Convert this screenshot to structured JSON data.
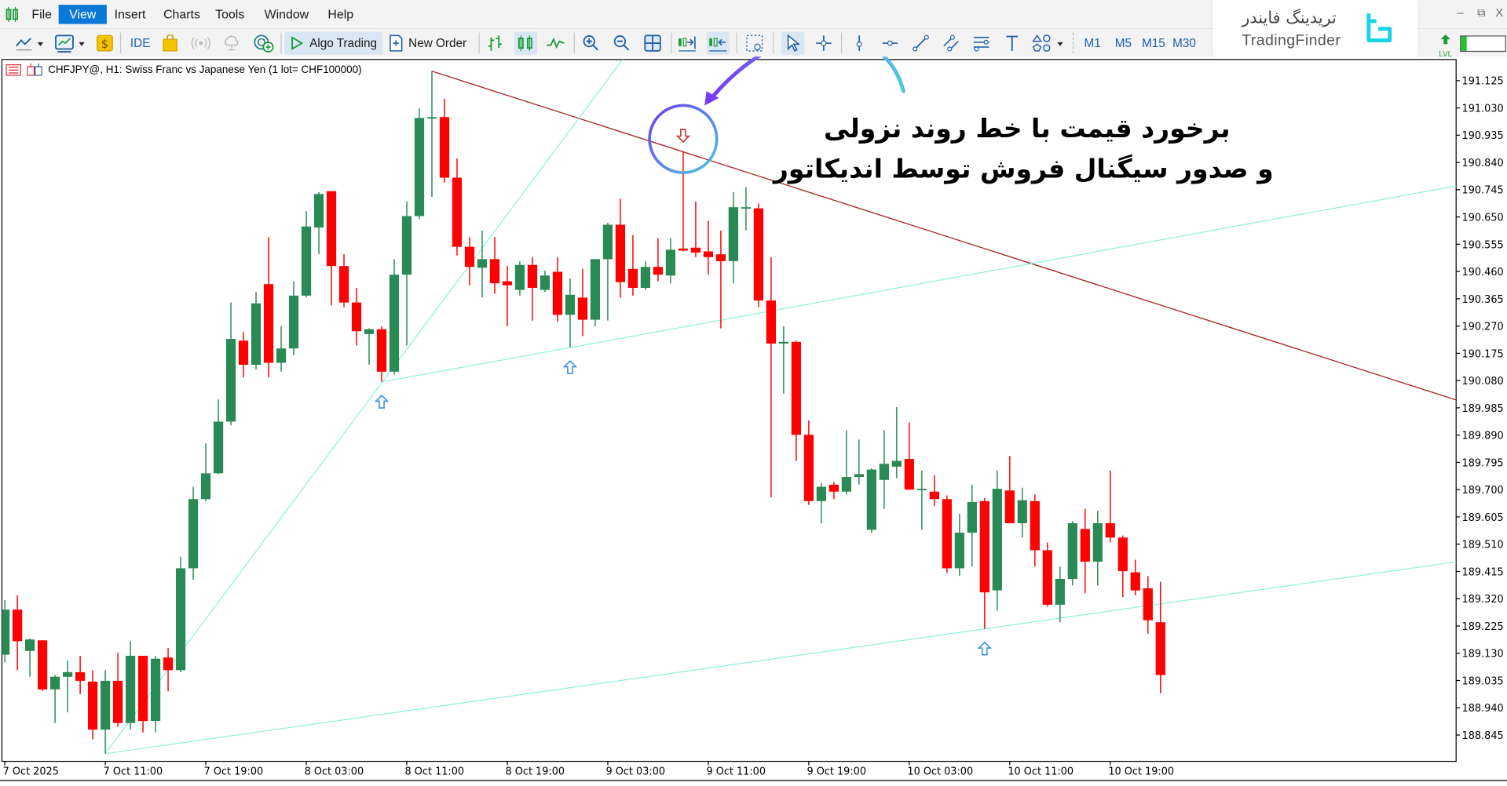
{
  "menu": {
    "items": [
      {
        "label": "File"
      },
      {
        "label": "View",
        "active": true
      },
      {
        "label": "Insert"
      },
      {
        "label": "Charts"
      },
      {
        "label": "Tools"
      },
      {
        "label": "Window"
      },
      {
        "label": "Help"
      }
    ]
  },
  "window_controls": {
    "minimize": "–",
    "restore": "⧉",
    "close": "X"
  },
  "toolbar": {
    "ide_label": "IDE",
    "algo_trading_label": "Algo Trading",
    "new_order_label": "New Order",
    "timeframes": [
      "M1",
      "M5",
      "M15",
      "M30"
    ],
    "lvl_label": "LVL",
    "level_fill_percent": 12,
    "active_tools": [
      "candlesticks",
      "autoscroll",
      "cursor"
    ]
  },
  "watermark": {
    "brand_fa": "تریدینگ فایندر",
    "brand_en": "TradingFinder",
    "accent": "#19d3e6"
  },
  "chart": {
    "title": "CHFJPY@, H1:  Swiss Franc vs Japanese Yen (1 lot= CHF100000)"
  },
  "annotation": {
    "line1": "برخورد قیمت با خط روند نزولی",
    "line2": "و صدور سیگنال فروش توسط اندیکاتور",
    "arrow_color_start": "#4fc8e0",
    "arrow_color_end": "#7a3cf0"
  },
  "chart_data": {
    "type": "candlestick",
    "symbol": "CHFJPY@",
    "timeframe": "H1",
    "colors": {
      "bull": "#2a8a56",
      "bear": "#ff0000",
      "support_line": "#8ff0dc",
      "resistance_line": "#a52a2a",
      "buy_arrow": "#3d8fe0",
      "sell_arrow": "#c0392b"
    },
    "ylim": [
      188.76,
      191.27
    ],
    "y_ticks": [
      "191.125",
      "191.030",
      "190.935",
      "190.840",
      "190.745",
      "190.650",
      "190.555",
      "190.460",
      "190.365",
      "190.270",
      "190.175",
      "190.080",
      "189.985",
      "189.890",
      "189.795",
      "189.700",
      "189.605",
      "189.510",
      "189.415",
      "189.320",
      "189.225",
      "189.130",
      "189.035",
      "188.940",
      "188.845"
    ],
    "x_ticks": [
      "7 Oct 2025",
      "7 Oct 11:00",
      "7 Oct 19:00",
      "8 Oct 03:00",
      "8 Oct 11:00",
      "8 Oct 19:00",
      "9 Oct 03:00",
      "9 Oct 11:00",
      "9 Oct 19:00",
      "10 Oct 03:00",
      "10 Oct 11:00",
      "10 Oct 19:00"
    ],
    "columns": [
      "time",
      "open",
      "high",
      "low",
      "close"
    ],
    "candles": [
      [
        "7 Oct 03:00",
        189.125,
        189.315,
        189.098,
        189.282
      ],
      [
        "7 Oct 04:00",
        189.282,
        189.332,
        189.071,
        189.172
      ],
      [
        "7 Oct 05:00",
        189.138,
        189.182,
        189.048,
        189.178
      ],
      [
        "7 Oct 06:00",
        189.175,
        189.175,
        188.998,
        189.004
      ],
      [
        "7 Oct 07:00",
        189.004,
        189.054,
        188.887,
        189.048
      ],
      [
        "7 Oct 08:00",
        189.048,
        189.105,
        188.924,
        189.064
      ],
      [
        "7 Oct 09:00",
        189.064,
        189.121,
        188.988,
        189.034
      ],
      [
        "7 Oct 10:00",
        189.031,
        189.071,
        188.83,
        188.864
      ],
      [
        "7 Oct 11:00",
        188.864,
        189.071,
        188.78,
        189.034
      ],
      [
        "7 Oct 12:00",
        189.034,
        189.131,
        188.874,
        188.887
      ],
      [
        "7 Oct 13:00",
        188.887,
        189.172,
        188.864,
        189.121
      ],
      [
        "7 Oct 14:00",
        189.121,
        189.121,
        188.854,
        188.894
      ],
      [
        "7 Oct 15:00",
        188.894,
        189.121,
        188.854,
        189.111
      ],
      [
        "7 Oct 16:00",
        189.115,
        189.148,
        188.998,
        189.071
      ],
      [
        "7 Oct 17:00",
        189.071,
        189.466,
        189.064,
        189.426
      ],
      [
        "7 Oct 18:00",
        189.426,
        189.71,
        189.386,
        189.667
      ],
      [
        "7 Oct 19:00",
        189.667,
        189.861,
        189.66,
        189.757
      ],
      [
        "7 Oct 20:00",
        189.757,
        190.014,
        189.754,
        189.937
      ],
      [
        "7 Oct 21:00",
        189.937,
        190.352,
        189.924,
        190.225
      ],
      [
        "7 Oct 22:00",
        190.219,
        190.249,
        190.091,
        190.135
      ],
      [
        "7 Oct 23:00",
        190.135,
        190.389,
        190.118,
        190.349
      ],
      [
        "8 Oct 00:00",
        190.416,
        190.58,
        190.091,
        190.142
      ],
      [
        "8 Oct 01:00",
        190.142,
        190.269,
        190.111,
        190.192
      ],
      [
        "8 Oct 02:00",
        190.192,
        190.426,
        190.168,
        190.376
      ],
      [
        "8 Oct 03:00",
        190.376,
        190.67,
        190.369,
        190.617
      ],
      [
        "8 Oct 04:00",
        190.613,
        190.737,
        190.52,
        190.73
      ],
      [
        "8 Oct 05:00",
        190.74,
        190.74,
        190.342,
        190.479
      ],
      [
        "8 Oct 06:00",
        190.479,
        190.52,
        190.336,
        190.352
      ],
      [
        "8 Oct 07:00",
        190.352,
        190.403,
        190.202,
        190.252
      ],
      [
        "8 Oct 08:00",
        190.242,
        190.262,
        190.135,
        190.259
      ],
      [
        "8 Oct 09:00",
        190.259,
        190.269,
        190.075,
        190.111
      ],
      [
        "8 Oct 10:00",
        190.111,
        190.503,
        190.101,
        190.449
      ],
      [
        "8 Oct 11:00",
        190.449,
        190.704,
        190.202,
        190.653
      ],
      [
        "8 Oct 12:00",
        190.653,
        191.028,
        190.643,
        190.995
      ],
      [
        "8 Oct 13:00",
        190.995,
        191.158,
        190.72,
        190.998
      ],
      [
        "8 Oct 14:00",
        190.998,
        191.062,
        190.77,
        190.787
      ],
      [
        "8 Oct 15:00",
        190.787,
        190.854,
        190.516,
        190.546
      ],
      [
        "8 Oct 16:00",
        190.546,
        190.58,
        190.412,
        190.476
      ],
      [
        "8 Oct 17:00",
        190.473,
        190.603,
        190.369,
        190.503
      ],
      [
        "8 Oct 18:00",
        190.503,
        190.58,
        190.382,
        190.419
      ],
      [
        "8 Oct 19:00",
        190.426,
        190.479,
        190.269,
        190.412
      ],
      [
        "8 Oct 20:00",
        190.396,
        190.496,
        190.376,
        190.483
      ],
      [
        "8 Oct 21:00",
        190.483,
        190.51,
        190.289,
        190.403
      ],
      [
        "8 Oct 22:00",
        190.396,
        190.463,
        190.389,
        190.446
      ],
      [
        "8 Oct 23:00",
        190.459,
        190.51,
        190.285,
        190.309
      ],
      [
        "9 Oct 00:00",
        190.309,
        190.436,
        190.195,
        190.379
      ],
      [
        "9 Oct 01:00",
        190.369,
        190.469,
        190.235,
        190.292
      ],
      [
        "9 Oct 02:00",
        190.292,
        190.503,
        190.269,
        190.503
      ],
      [
        "9 Oct 03:00",
        190.503,
        190.63,
        190.289,
        190.623
      ],
      [
        "9 Oct 04:00",
        190.623,
        190.714,
        190.369,
        190.423
      ],
      [
        "9 Oct 05:00",
        190.469,
        190.587,
        190.376,
        190.403
      ],
      [
        "9 Oct 06:00",
        190.403,
        190.496,
        190.396,
        190.476
      ],
      [
        "9 Oct 07:00",
        190.476,
        190.576,
        190.426,
        190.449
      ],
      [
        "9 Oct 08:00",
        190.446,
        190.576,
        190.419,
        190.536
      ],
      [
        "9 Oct 09:00",
        190.54,
        190.878,
        190.53,
        190.533
      ],
      [
        "9 Oct 10:00",
        190.543,
        190.704,
        190.51,
        190.526
      ],
      [
        "9 Oct 11:00",
        190.53,
        190.637,
        190.449,
        190.51
      ],
      [
        "9 Oct 12:00",
        190.52,
        190.603,
        190.262,
        190.496
      ],
      [
        "9 Oct 13:00",
        190.496,
        190.737,
        190.419,
        190.684
      ],
      [
        "9 Oct 14:00",
        190.68,
        190.754,
        190.603,
        190.684
      ],
      [
        "9 Oct 15:00",
        190.68,
        190.697,
        190.336,
        190.359
      ],
      [
        "9 Oct 16:00",
        190.359,
        190.51,
        189.673,
        190.209
      ],
      [
        "9 Oct 17:00",
        190.209,
        190.269,
        190.035,
        190.215
      ],
      [
        "9 Oct 18:00",
        190.215,
        190.219,
        189.8,
        189.891
      ],
      [
        "9 Oct 19:00",
        189.891,
        189.941,
        189.647,
        189.66
      ],
      [
        "9 Oct 20:00",
        189.66,
        189.724,
        189.583,
        189.71
      ],
      [
        "9 Oct 21:00",
        189.717,
        189.727,
        189.667,
        189.693
      ],
      [
        "9 Oct 22:00",
        189.693,
        189.907,
        189.683,
        189.744
      ],
      [
        "9 Oct 23:00",
        189.744,
        189.874,
        189.717,
        189.754
      ],
      [
        "10 Oct 00:00",
        189.56,
        189.774,
        189.55,
        189.77
      ],
      [
        "10 Oct 01:00",
        189.734,
        189.907,
        189.633,
        189.79
      ],
      [
        "10 Oct 02:00",
        189.78,
        189.988,
        189.74,
        189.8
      ],
      [
        "10 Oct 03:00",
        189.807,
        189.934,
        189.7,
        189.7
      ],
      [
        "10 Oct 04:00",
        189.7,
        189.767,
        189.56,
        189.703
      ],
      [
        "10 Oct 05:00",
        189.693,
        189.75,
        189.643,
        189.667
      ],
      [
        "10 Oct 06:00",
        189.667,
        189.68,
        189.409,
        189.426
      ],
      [
        "10 Oct 07:00",
        189.426,
        189.616,
        189.399,
        189.55
      ],
      [
        "10 Oct 08:00",
        189.55,
        189.717,
        189.432,
        189.657
      ],
      [
        "10 Oct 09:00",
        189.66,
        189.67,
        189.215,
        189.342
      ],
      [
        "10 Oct 10:00",
        189.349,
        189.767,
        189.279,
        189.703
      ],
      [
        "10 Oct 11:00",
        189.697,
        189.817,
        189.583,
        189.583
      ],
      [
        "10 Oct 12:00",
        189.583,
        189.707,
        189.533,
        189.663
      ],
      [
        "10 Oct 13:00",
        189.66,
        189.683,
        189.432,
        189.489
      ],
      [
        "10 Oct 14:00",
        189.489,
        189.516,
        189.292,
        189.299
      ],
      [
        "10 Oct 15:00",
        189.299,
        189.432,
        189.238,
        189.389
      ],
      [
        "10 Oct 16:00",
        189.389,
        189.59,
        189.366,
        189.583
      ],
      [
        "10 Oct 17:00",
        189.563,
        189.633,
        189.339,
        189.449
      ],
      [
        "10 Oct 18:00",
        189.449,
        189.626,
        189.366,
        189.583
      ],
      [
        "10 Oct 19:00",
        189.583,
        189.767,
        189.516,
        189.533
      ],
      [
        "10 Oct 20:00",
        189.533,
        189.54,
        189.325,
        189.416
      ],
      [
        "10 Oct 21:00",
        189.412,
        189.456,
        189.332,
        189.349
      ],
      [
        "10 Oct 22:00",
        189.356,
        189.399,
        189.198,
        189.245
      ],
      [
        "10 Oct 23:00",
        189.238,
        189.379,
        188.991,
        189.054
      ]
    ],
    "trendlines": [
      {
        "kind": "resistance",
        "color": "#a52a2a",
        "p1": [
          "8 Oct 13:00",
          191.158
        ],
        "p2": [
          "9 Oct 09:00",
          190.877
        ]
      },
      {
        "kind": "support",
        "color": "#8ff0dc",
        "p1": [
          "7 Oct 11:00",
          188.78
        ],
        "p2": [
          "8 Oct 09:00",
          190.072
        ]
      },
      {
        "kind": "support",
        "color": "#8ff0dc",
        "p1": [
          "8 Oct 09:00",
          190.075
        ],
        "p2": [
          "10 Oct 23:00",
          190.57
        ]
      },
      {
        "kind": "support",
        "color": "#8ff0dc",
        "p1": [
          "7 Oct 11:00",
          188.78
        ],
        "p2": [
          "10 Oct 23:00",
          189.302
        ]
      }
    ],
    "signals": [
      {
        "time": "8 Oct 09:00",
        "type": "buy"
      },
      {
        "time": "9 Oct 00:00",
        "type": "buy"
      },
      {
        "time": "9 Oct 09:00",
        "type": "sell"
      },
      {
        "time": "10 Oct 09:00",
        "type": "buy"
      }
    ],
    "highlighted_signal": "9 Oct 09:00"
  }
}
